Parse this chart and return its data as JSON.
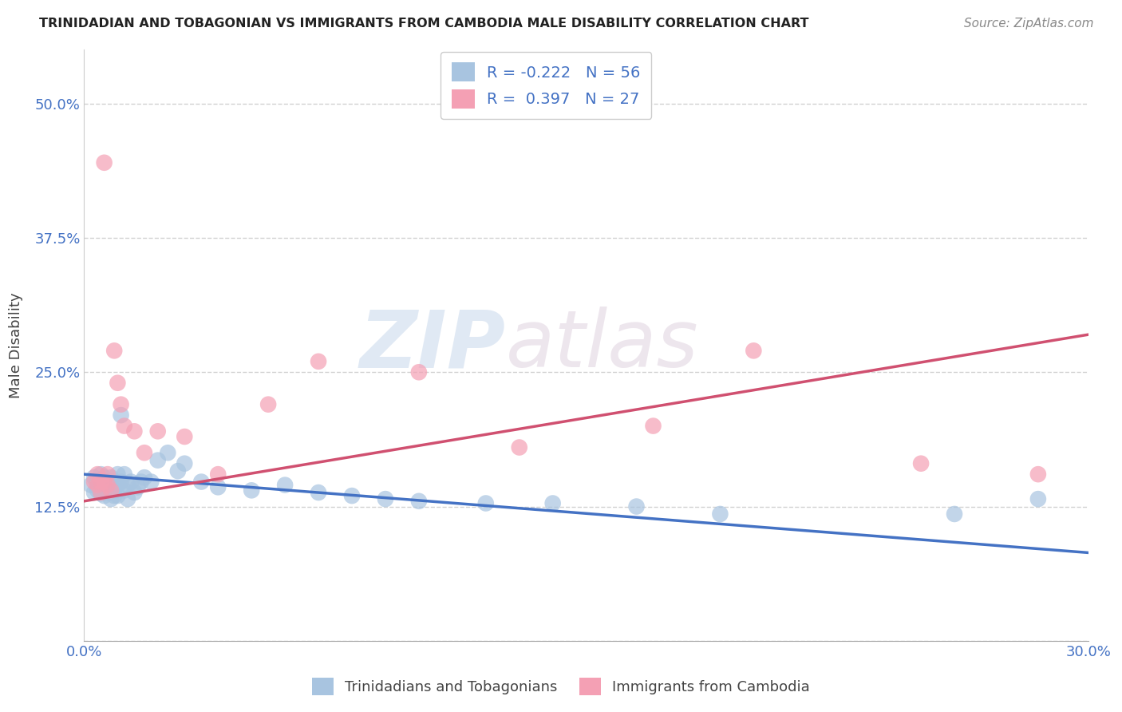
{
  "title": "TRINIDADIAN AND TOBAGONIAN VS IMMIGRANTS FROM CAMBODIA MALE DISABILITY CORRELATION CHART",
  "source": "Source: ZipAtlas.com",
  "ylabel": "Male Disability",
  "x_min": 0.0,
  "x_max": 0.3,
  "y_min": 0.0,
  "y_max": 0.55,
  "x_ticks": [
    0.0,
    0.05,
    0.1,
    0.15,
    0.2,
    0.25,
    0.3
  ],
  "x_tick_labels": [
    "0.0%",
    "",
    "",
    "",
    "",
    "",
    "30.0%"
  ],
  "y_ticks": [
    0.0,
    0.125,
    0.25,
    0.375,
    0.5
  ],
  "y_tick_labels": [
    "",
    "12.5%",
    "25.0%",
    "37.5%",
    "50.0%"
  ],
  "blue_R": -0.222,
  "blue_N": 56,
  "pink_R": 0.397,
  "pink_N": 27,
  "blue_color": "#a8c4e0",
  "pink_color": "#f4a0b4",
  "blue_line_color": "#4472c4",
  "pink_line_color": "#d05070",
  "legend_label_blue": "Trinidadians and Tobagonians",
  "legend_label_pink": "Immigrants from Cambodia",
  "watermark_zip": "ZIP",
  "watermark_atlas": "atlas",
  "blue_line_start_y": 0.155,
  "blue_line_end_y": 0.082,
  "pink_line_start_y": 0.13,
  "pink_line_end_y": 0.285,
  "blue_scatter_x": [
    0.002,
    0.003,
    0.003,
    0.004,
    0.004,
    0.004,
    0.005,
    0.005,
    0.005,
    0.005,
    0.006,
    0.006,
    0.006,
    0.006,
    0.007,
    0.007,
    0.007,
    0.008,
    0.008,
    0.008,
    0.009,
    0.009,
    0.009,
    0.01,
    0.01,
    0.01,
    0.011,
    0.011,
    0.012,
    0.012,
    0.013,
    0.013,
    0.014,
    0.015,
    0.016,
    0.017,
    0.018,
    0.02,
    0.022,
    0.025,
    0.028,
    0.03,
    0.035,
    0.04,
    0.05,
    0.06,
    0.07,
    0.08,
    0.09,
    0.1,
    0.12,
    0.14,
    0.165,
    0.19,
    0.26,
    0.285
  ],
  "blue_scatter_y": [
    0.145,
    0.138,
    0.152,
    0.14,
    0.148,
    0.143,
    0.15,
    0.143,
    0.155,
    0.137,
    0.148,
    0.152,
    0.14,
    0.135,
    0.148,
    0.143,
    0.138,
    0.152,
    0.145,
    0.132,
    0.148,
    0.14,
    0.135,
    0.155,
    0.145,
    0.135,
    0.21,
    0.148,
    0.155,
    0.14,
    0.145,
    0.132,
    0.148,
    0.138,
    0.143,
    0.148,
    0.152,
    0.148,
    0.168,
    0.175,
    0.158,
    0.165,
    0.148,
    0.143,
    0.14,
    0.145,
    0.138,
    0.135,
    0.132,
    0.13,
    0.128,
    0.128,
    0.125,
    0.118,
    0.118,
    0.132
  ],
  "pink_scatter_x": [
    0.003,
    0.004,
    0.004,
    0.005,
    0.005,
    0.006,
    0.006,
    0.007,
    0.007,
    0.008,
    0.009,
    0.01,
    0.011,
    0.012,
    0.015,
    0.018,
    0.022,
    0.03,
    0.04,
    0.055,
    0.07,
    0.1,
    0.13,
    0.17,
    0.2,
    0.25,
    0.285
  ],
  "pink_scatter_y": [
    0.148,
    0.155,
    0.145,
    0.148,
    0.138,
    0.148,
    0.445,
    0.155,
    0.145,
    0.14,
    0.27,
    0.24,
    0.22,
    0.2,
    0.195,
    0.175,
    0.195,
    0.19,
    0.155,
    0.22,
    0.26,
    0.25,
    0.18,
    0.2,
    0.27,
    0.165,
    0.155
  ]
}
